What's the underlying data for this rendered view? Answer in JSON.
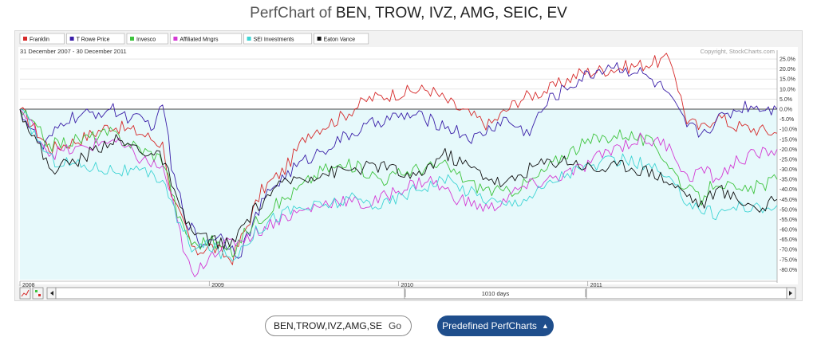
{
  "page": {
    "title_prefix": "PerfChart of ",
    "title_symbols": "BEN, TROW, IVZ, AMG, SEIC, EV"
  },
  "controls": {
    "symbols_value": "BEN,TROW,IVZ,AMG,SEIC,EV",
    "go_label": "Go",
    "predefined_label": "Predefined PerfCharts",
    "caret_icon": "chevron-up-icon",
    "days_label": "1010 days"
  },
  "chart_data": {
    "type": "line",
    "date_range": "31 December 2007 - 30 December 2011",
    "copyright": "Copyright, StockCharts.com",
    "x_labels": [
      "2008",
      "2009",
      "2010",
      "2011"
    ],
    "x_label_positions": [
      0,
      0.25,
      0.5,
      0.75
    ],
    "ylim": [
      -85,
      27
    ],
    "y_ticks": [
      25,
      20,
      15,
      10,
      5,
      0,
      -5,
      -10,
      -15,
      -20,
      -25,
      -30,
      -35,
      -40,
      -45,
      -50,
      -55,
      -60,
      -65,
      -70,
      -75,
      -80
    ],
    "grid": true,
    "legend_position": "top-left",
    "series": [
      {
        "name": "Franklin",
        "color": "#d62a2a",
        "x": [
          0,
          0.04,
          0.08,
          0.12,
          0.16,
          0.19,
          0.2,
          0.22,
          0.23,
          0.25,
          0.28,
          0.3,
          0.32,
          0.35,
          0.38,
          0.42,
          0.46,
          0.5,
          0.54,
          0.58,
          0.62,
          0.66,
          0.7,
          0.74,
          0.78,
          0.82,
          0.86,
          0.88,
          0.9,
          0.92,
          0.94,
          0.97,
          1.0
        ],
        "values": [
          0,
          -20,
          -15,
          -8,
          -12,
          -18,
          -45,
          -60,
          -72,
          -68,
          -75,
          -58,
          -40,
          -30,
          -12,
          -5,
          5,
          8,
          10,
          0,
          -8,
          5,
          10,
          18,
          20,
          22,
          25,
          -5,
          -10,
          -3,
          -8,
          -10,
          -12
        ]
      },
      {
        "name": "T Rowe Price",
        "color": "#3a1ea8",
        "x": [
          0,
          0.03,
          0.06,
          0.09,
          0.12,
          0.15,
          0.18,
          0.19,
          0.2,
          0.22,
          0.24,
          0.26,
          0.29,
          0.31,
          0.33,
          0.36,
          0.4,
          0.44,
          0.48,
          0.52,
          0.56,
          0.6,
          0.64,
          0.67,
          0.7,
          0.74,
          0.78,
          0.82,
          0.85,
          0.88,
          0.9,
          0.93,
          0.96,
          1.0
        ],
        "values": [
          0,
          -20,
          -5,
          -3,
          0,
          -5,
          -8,
          5,
          -30,
          -55,
          -68,
          -62,
          -72,
          -55,
          -40,
          -30,
          -20,
          -12,
          -5,
          -3,
          -8,
          -15,
          -5,
          -12,
          5,
          15,
          22,
          18,
          10,
          -8,
          -12,
          -3,
          2,
          0
        ]
      },
      {
        "name": "Invesco",
        "color": "#3ec43e",
        "x": [
          0,
          0.04,
          0.08,
          0.12,
          0.16,
          0.19,
          0.21,
          0.23,
          0.25,
          0.28,
          0.3,
          0.33,
          0.36,
          0.4,
          0.44,
          0.48,
          0.52,
          0.56,
          0.6,
          0.64,
          0.68,
          0.72,
          0.76,
          0.8,
          0.84,
          0.88,
          0.9,
          0.92,
          0.95,
          0.98,
          1.0
        ],
        "values": [
          0,
          -18,
          -15,
          -12,
          -20,
          -25,
          -55,
          -68,
          -65,
          -72,
          -60,
          -50,
          -42,
          -30,
          -28,
          -35,
          -30,
          -28,
          -38,
          -42,
          -35,
          -22,
          -15,
          -12,
          -18,
          -40,
          -45,
          -35,
          -42,
          -38,
          -35
        ]
      },
      {
        "name": "Affiliated Mngrs",
        "color": "#d43ad4",
        "x": [
          0,
          0.04,
          0.08,
          0.12,
          0.16,
          0.19,
          0.21,
          0.22,
          0.23,
          0.25,
          0.27,
          0.29,
          0.31,
          0.34,
          0.38,
          0.42,
          0.46,
          0.5,
          0.54,
          0.58,
          0.62,
          0.66,
          0.7,
          0.74,
          0.78,
          0.82,
          0.86,
          0.88,
          0.9,
          0.92,
          0.95,
          0.98,
          1.0
        ],
        "values": [
          0,
          -22,
          -20,
          -15,
          -25,
          -30,
          -60,
          -75,
          -85,
          -72,
          -68,
          -65,
          -62,
          -55,
          -50,
          -45,
          -48,
          -40,
          -35,
          -45,
          -50,
          -40,
          -35,
          -30,
          -20,
          -15,
          -18,
          -35,
          -30,
          -35,
          -25,
          -22,
          -20
        ]
      },
      {
        "name": "SEI Investments",
        "color": "#3ed4d4",
        "x": [
          0,
          0.04,
          0.08,
          0.12,
          0.16,
          0.19,
          0.21,
          0.23,
          0.25,
          0.28,
          0.3,
          0.33,
          0.36,
          0.4,
          0.44,
          0.48,
          0.52,
          0.56,
          0.6,
          0.64,
          0.68,
          0.72,
          0.76,
          0.8,
          0.84,
          0.88,
          0.9,
          0.92,
          0.95,
          0.98,
          1.0
        ],
        "values": [
          0,
          -25,
          -28,
          -30,
          -32,
          -35,
          -58,
          -70,
          -68,
          -75,
          -65,
          -55,
          -50,
          -48,
          -45,
          -48,
          -40,
          -35,
          -42,
          -48,
          -42,
          -32,
          -28,
          -25,
          -30,
          -45,
          -50,
          -52,
          -48,
          -50,
          -48
        ]
      },
      {
        "name": "Eaton Vance",
        "color": "#111111",
        "x": [
          0,
          0.04,
          0.08,
          0.12,
          0.16,
          0.19,
          0.21,
          0.23,
          0.25,
          0.28,
          0.3,
          0.33,
          0.36,
          0.4,
          0.44,
          0.48,
          0.52,
          0.56,
          0.6,
          0.64,
          0.68,
          0.72,
          0.76,
          0.8,
          0.84,
          0.88,
          0.9,
          0.92,
          0.95,
          0.98,
          1.0
        ],
        "values": [
          0,
          -30,
          -25,
          -15,
          -20,
          -25,
          -50,
          -62,
          -65,
          -68,
          -55,
          -42,
          -35,
          -32,
          -30,
          -28,
          -35,
          -22,
          -30,
          -38,
          -28,
          -25,
          -30,
          -28,
          -32,
          -42,
          -48,
          -40,
          -45,
          -50,
          -45
        ]
      }
    ]
  }
}
